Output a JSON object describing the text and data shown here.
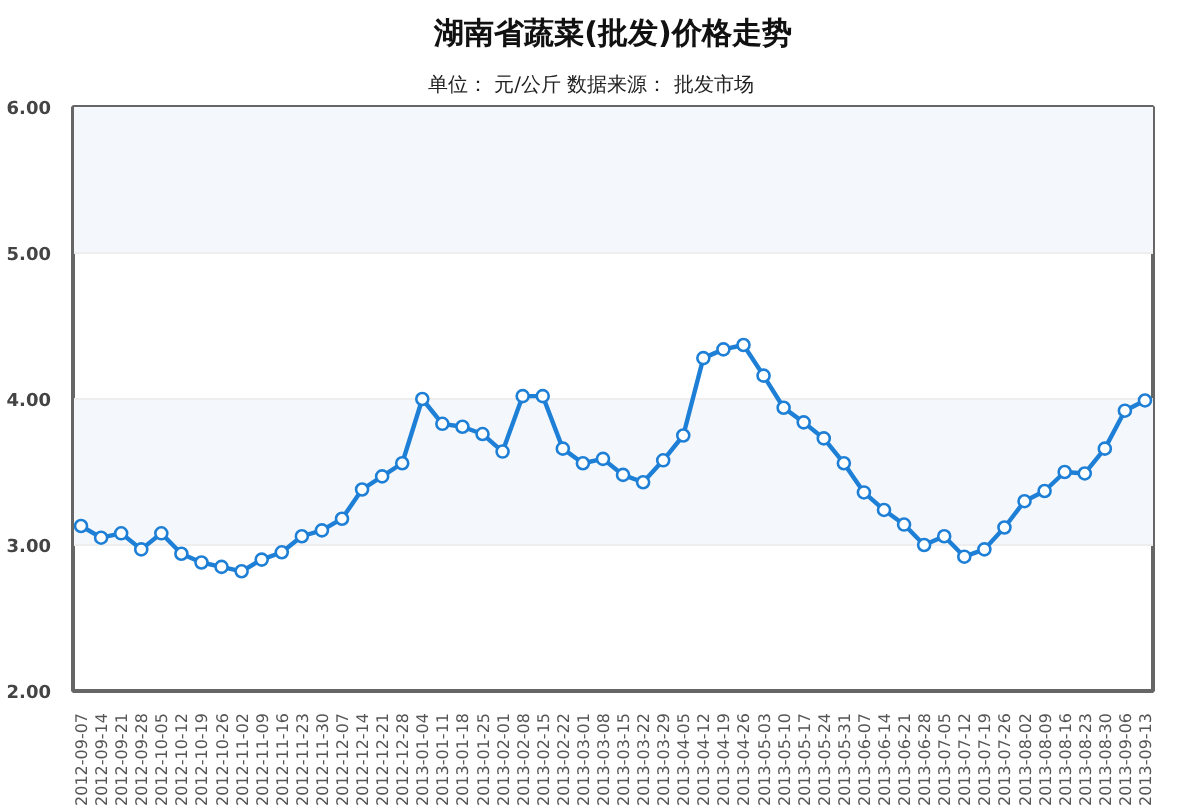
{
  "chart_data": {
    "type": "line",
    "title": "湖南省蔬菜(批发)价格走势",
    "subtitle": "单位： 元/公斤        数据来源： 批发市场",
    "categories": [
      "2012-09-07",
      "2012-09-14",
      "2012-09-21",
      "2012-09-28",
      "2012-10-05",
      "2012-10-12",
      "2012-10-19",
      "2012-10-26",
      "2012-11-02",
      "2012-11-09",
      "2012-11-16",
      "2012-11-23",
      "2012-11-30",
      "2012-12-07",
      "2012-12-14",
      "2012-12-21",
      "2012-12-28",
      "2013-01-04",
      "2013-01-11",
      "2013-01-18",
      "2013-01-25",
      "2013-02-01",
      "2013-02-08",
      "2013-02-15",
      "2013-02-22",
      "2013-03-01",
      "2013-03-08",
      "2013-03-15",
      "2013-03-22",
      "2013-03-29",
      "2013-04-05",
      "2013-04-12",
      "2013-04-19",
      "2013-04-26",
      "2013-05-03",
      "2013-05-10",
      "2013-05-17",
      "2013-05-24",
      "2013-05-31",
      "2013-06-07",
      "2013-06-14",
      "2013-06-21",
      "2013-06-28",
      "2013-07-05",
      "2013-07-12",
      "2013-07-19",
      "2013-07-26",
      "2013-08-02",
      "2013-08-09",
      "2013-08-16",
      "2013-08-23",
      "2013-08-30",
      "2013-09-06",
      "2013-09-13"
    ],
    "series": [
      {
        "color": "#1e7fd6",
        "values": [
          3.13,
          3.05,
          3.08,
          2.97,
          3.08,
          2.94,
          2.88,
          2.85,
          2.82,
          2.9,
          2.95,
          3.06,
          3.1,
          3.18,
          3.38,
          3.47,
          3.56,
          4.0,
          3.83,
          3.81,
          3.76,
          3.64,
          4.02,
          4.02,
          3.66,
          3.56,
          3.59,
          3.48,
          3.43,
          3.58,
          3.75,
          4.28,
          4.34,
          4.37,
          4.16,
          3.94,
          3.84,
          3.73,
          3.56,
          3.36,
          3.24,
          3.14,
          3.0,
          3.06,
          2.92,
          2.97,
          3.12,
          3.3,
          3.37,
          3.5,
          3.49,
          3.66,
          3.92,
          3.99
        ]
      }
    ],
    "ylim": [
      2,
      6
    ],
    "yticks": [
      {
        "value": 2,
        "label": "2.00"
      },
      {
        "value": 3,
        "label": "3.00"
      },
      {
        "value": 4,
        "label": "4.00"
      },
      {
        "value": 5,
        "label": "5.00"
      },
      {
        "value": 6,
        "label": "6.00"
      }
    ],
    "grid": "y",
    "marker": "circle",
    "line_style": "solid"
  }
}
